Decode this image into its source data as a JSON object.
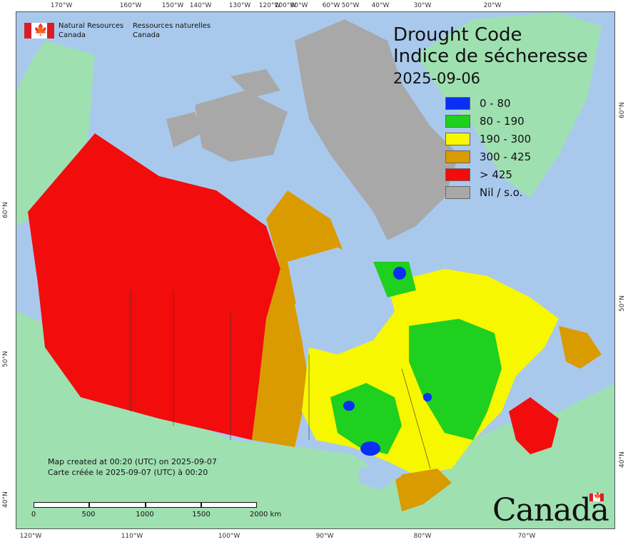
{
  "header": {
    "org_en": "Natural Resources",
    "org_en2": "Canada",
    "org_fr": "Ressources naturelles",
    "org_fr2": "Canada"
  },
  "title": {
    "en": "Drought Code",
    "fr": "Indice de sécheresse",
    "date": "2025-09-06"
  },
  "legend": [
    {
      "label": "0 - 80",
      "color": "#0a2ef2"
    },
    {
      "label": "80 - 190",
      "color": "#1fd01f"
    },
    {
      "label": "190 - 300",
      "color": "#f7f700"
    },
    {
      "label": "300 - 425",
      "color": "#d99b00"
    },
    {
      "label": "> 425",
      "color": "#f20c0c"
    },
    {
      "label": "Nil / s.o.",
      "color": "#a8a8a8"
    }
  ],
  "axes": {
    "top_ticks": [
      "170°W",
      "160°W",
      "150°W",
      "140°W",
      "130°W",
      "120°W",
      "110°W",
      "100°W",
      "90°W",
      "80°W",
      "70°W",
      "60°W",
      "50°W",
      "40°W",
      "30°W",
      "20°W"
    ],
    "bottom_ticks": [
      "120°W",
      "110°W",
      "100°W",
      "90°W",
      "80°W",
      "70°W"
    ],
    "left_ticks": [
      "40°N",
      "50°N",
      "60°N"
    ],
    "right_ticks": [
      "40°N",
      "50°N",
      "60°N"
    ]
  },
  "credit": {
    "line1": "Map created at 00:20 (UTC) on 2025-09-07",
    "line2": "Carte créée le 2025-09-07 (UTC) à 00:20"
  },
  "scalebar": {
    "labels": [
      "0",
      "500",
      "1000",
      "1500",
      "2000  km"
    ]
  },
  "wordmark": "Canada",
  "colors": {
    "ocean": "#a9c9ec",
    "us_land": "#9fe0b1",
    "greenland": "#9fe0b1",
    "nil_arctic": "#a8a8a8"
  }
}
